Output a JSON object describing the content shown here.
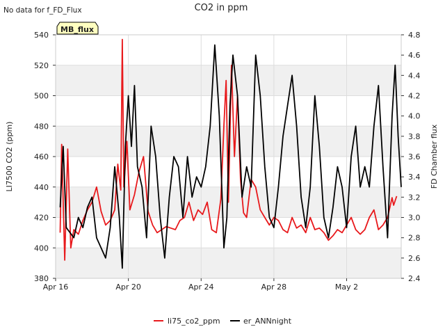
{
  "no_data_note": "No data for f_FD_Flux",
  "site_badge": "MB_flux",
  "colors": {
    "li75": "#e8191c",
    "ann": "#000000",
    "band": "#f0f0f0",
    "badge_bg": "#ffffc0",
    "badge_text": "#8b0000"
  },
  "chart_data": {
    "type": "line",
    "title": "CO2 in ppm",
    "ylabel": "LI7500 CO2 (ppm)",
    "y2label": "FD Chamber flux",
    "xlim": [
      "2024-04-16",
      "2024-05-05"
    ],
    "ylim": [
      380,
      540
    ],
    "y2lim": [
      2.4,
      4.8
    ],
    "x_ticks": [
      {
        "date": "2024-04-16",
        "label": "Apr 16"
      },
      {
        "date": "2024-04-20",
        "label": "Apr 20"
      },
      {
        "date": "2024-04-24",
        "label": "Apr 24"
      },
      {
        "date": "2024-04-28",
        "label": "Apr 28"
      },
      {
        "date": "2024-05-02",
        "label": "May 2"
      }
    ],
    "y_ticks": [
      380,
      400,
      420,
      440,
      460,
      480,
      500,
      520,
      540
    ],
    "y2_ticks": [
      "2.4",
      "2.6",
      "2.8",
      "3.0",
      "3.2",
      "3.4",
      "3.6",
      "3.8",
      "4.0",
      "4.2",
      "4.4",
      "4.6",
      "4.8"
    ],
    "grid": true,
    "legend_position": "bottom",
    "series": [
      {
        "name": "li75_co2_ppm",
        "axis": "left",
        "points": [
          [
            "2024-04-16 06:00",
            410
          ],
          [
            "2024-04-16 08:00",
            468
          ],
          [
            "2024-04-16 12:00",
            392
          ],
          [
            "2024-04-16 16:00",
            465
          ],
          [
            "2024-04-16 20:00",
            400
          ],
          [
            "2024-04-17 00:00",
            412
          ],
          [
            "2024-04-17 06:00",
            409
          ],
          [
            "2024-04-17 12:00",
            418
          ],
          [
            "2024-04-17 18:00",
            425
          ],
          [
            "2024-04-18 00:00",
            430
          ],
          [
            "2024-04-18 06:00",
            440
          ],
          [
            "2024-04-18 12:00",
            424
          ],
          [
            "2024-04-18 18:00",
            415
          ],
          [
            "2024-04-19 00:00",
            418
          ],
          [
            "2024-04-19 06:00",
            425
          ],
          [
            "2024-04-19 10:00",
            455
          ],
          [
            "2024-04-19 14:00",
            438
          ],
          [
            "2024-04-19 16:00",
            537
          ],
          [
            "2024-04-19 18:00",
            440
          ],
          [
            "2024-04-19 22:00",
            470
          ],
          [
            "2024-04-20 02:00",
            425
          ],
          [
            "2024-04-20 08:00",
            435
          ],
          [
            "2024-04-20 14:00",
            450
          ],
          [
            "2024-04-20 20:00",
            460
          ],
          [
            "2024-04-21 02:00",
            424
          ],
          [
            "2024-04-21 08:00",
            415
          ],
          [
            "2024-04-21 14:00",
            410
          ],
          [
            "2024-04-21 20:00",
            412
          ],
          [
            "2024-04-22 02:00",
            414
          ],
          [
            "2024-04-22 08:00",
            413
          ],
          [
            "2024-04-22 14:00",
            412
          ],
          [
            "2024-04-22 20:00",
            418
          ],
          [
            "2024-04-23 02:00",
            420
          ],
          [
            "2024-04-23 08:00",
            430
          ],
          [
            "2024-04-23 14:00",
            418
          ],
          [
            "2024-04-23 20:00",
            425
          ],
          [
            "2024-04-24 02:00",
            422
          ],
          [
            "2024-04-24 08:00",
            430
          ],
          [
            "2024-04-24 14:00",
            412
          ],
          [
            "2024-04-24 20:00",
            410
          ],
          [
            "2024-04-25 02:00",
            432
          ],
          [
            "2024-04-25 06:00",
            480
          ],
          [
            "2024-04-25 09:00",
            510
          ],
          [
            "2024-04-25 12:00",
            430
          ],
          [
            "2024-04-25 16:00",
            520
          ],
          [
            "2024-04-25 20:00",
            460
          ],
          [
            "2024-04-26 00:00",
            500
          ],
          [
            "2024-04-26 04:00",
            445
          ],
          [
            "2024-04-26 08:00",
            423
          ],
          [
            "2024-04-26 12:00",
            420
          ],
          [
            "2024-04-26 18:00",
            445
          ],
          [
            "2024-04-27 00:00",
            440
          ],
          [
            "2024-04-27 06:00",
            425
          ],
          [
            "2024-04-27 12:00",
            420
          ],
          [
            "2024-04-27 18:00",
            415
          ],
          [
            "2024-04-28 00:00",
            420
          ],
          [
            "2024-04-28 06:00",
            418
          ],
          [
            "2024-04-28 12:00",
            412
          ],
          [
            "2024-04-28 18:00",
            410
          ],
          [
            "2024-04-29 00:00",
            420
          ],
          [
            "2024-04-29 06:00",
            413
          ],
          [
            "2024-04-29 12:00",
            415
          ],
          [
            "2024-04-29 18:00",
            410
          ],
          [
            "2024-04-30 00:00",
            420
          ],
          [
            "2024-04-30 06:00",
            412
          ],
          [
            "2024-04-30 12:00",
            413
          ],
          [
            "2024-04-30 18:00",
            410
          ],
          [
            "2024-05-01 00:00",
            405
          ],
          [
            "2024-05-01 06:00",
            408
          ],
          [
            "2024-05-01 12:00",
            412
          ],
          [
            "2024-05-01 18:00",
            410
          ],
          [
            "2024-05-02 00:00",
            415
          ],
          [
            "2024-05-02 06:00",
            420
          ],
          [
            "2024-05-02 12:00",
            412
          ],
          [
            "2024-05-02 18:00",
            409
          ],
          [
            "2024-05-03 00:00",
            412
          ],
          [
            "2024-05-03 06:00",
            420
          ],
          [
            "2024-05-03 12:00",
            425
          ],
          [
            "2024-05-03 18:00",
            412
          ],
          [
            "2024-05-04 00:00",
            415
          ],
          [
            "2024-05-04 06:00",
            420
          ],
          [
            "2024-05-04 12:00",
            433
          ],
          [
            "2024-05-04 14:00",
            428
          ],
          [
            "2024-05-04 18:00",
            434
          ]
        ]
      },
      {
        "name": "er_ANNnight",
        "axis": "right",
        "points": [
          [
            "2024-04-16 06:00",
            3.1
          ],
          [
            "2024-04-16 10:00",
            3.7
          ],
          [
            "2024-04-16 14:00",
            2.9
          ],
          [
            "2024-04-17 00:00",
            2.8
          ],
          [
            "2024-04-17 06:00",
            3.0
          ],
          [
            "2024-04-17 12:00",
            2.9
          ],
          [
            "2024-04-17 18:00",
            3.1
          ],
          [
            "2024-04-18 00:00",
            3.2
          ],
          [
            "2024-04-18 06:00",
            2.8
          ],
          [
            "2024-04-18 12:00",
            2.7
          ],
          [
            "2024-04-18 18:00",
            2.6
          ],
          [
            "2024-04-19 00:00",
            2.9
          ],
          [
            "2024-04-19 06:00",
            3.5
          ],
          [
            "2024-04-19 12:00",
            3.0
          ],
          [
            "2024-04-19 16:00",
            2.5
          ],
          [
            "2024-04-19 20:00",
            3.7
          ],
          [
            "2024-04-20 00:00",
            4.2
          ],
          [
            "2024-04-20 04:00",
            3.7
          ],
          [
            "2024-04-20 08:00",
            4.3
          ],
          [
            "2024-04-20 12:00",
            3.5
          ],
          [
            "2024-04-20 18:00",
            3.3
          ],
          [
            "2024-04-21 00:00",
            2.8
          ],
          [
            "2024-04-21 06:00",
            3.9
          ],
          [
            "2024-04-21 12:00",
            3.6
          ],
          [
            "2024-04-21 18:00",
            3.0
          ],
          [
            "2024-04-22 00:00",
            2.6
          ],
          [
            "2024-04-22 06:00",
            3.2
          ],
          [
            "2024-04-22 12:00",
            3.6
          ],
          [
            "2024-04-22 18:00",
            3.5
          ],
          [
            "2024-04-23 00:00",
            3.0
          ],
          [
            "2024-04-23 06:00",
            3.6
          ],
          [
            "2024-04-23 12:00",
            3.2
          ],
          [
            "2024-04-23 18:00",
            3.4
          ],
          [
            "2024-04-24 00:00",
            3.3
          ],
          [
            "2024-04-24 06:00",
            3.5
          ],
          [
            "2024-04-24 12:00",
            3.9
          ],
          [
            "2024-04-24 18:00",
            4.7
          ],
          [
            "2024-04-25 00:00",
            4.0
          ],
          [
            "2024-04-25 06:00",
            2.7
          ],
          [
            "2024-04-25 10:00",
            3.0
          ],
          [
            "2024-04-25 14:00",
            4.1
          ],
          [
            "2024-04-25 18:00",
            4.6
          ],
          [
            "2024-04-26 00:00",
            4.2
          ],
          [
            "2024-04-26 06:00",
            3.2
          ],
          [
            "2024-04-26 12:00",
            3.5
          ],
          [
            "2024-04-26 18:00",
            3.3
          ],
          [
            "2024-04-27 00:00",
            4.6
          ],
          [
            "2024-04-27 06:00",
            4.2
          ],
          [
            "2024-04-27 12:00",
            3.5
          ],
          [
            "2024-04-27 18:00",
            3.0
          ],
          [
            "2024-04-28 00:00",
            2.9
          ],
          [
            "2024-04-28 06:00",
            3.3
          ],
          [
            "2024-04-28 12:00",
            3.8
          ],
          [
            "2024-04-28 18:00",
            4.1
          ],
          [
            "2024-04-29 00:00",
            4.4
          ],
          [
            "2024-04-29 06:00",
            3.9
          ],
          [
            "2024-04-29 12:00",
            3.2
          ],
          [
            "2024-04-29 18:00",
            2.9
          ],
          [
            "2024-04-30 00:00",
            3.3
          ],
          [
            "2024-04-30 06:00",
            4.2
          ],
          [
            "2024-04-30 12:00",
            3.7
          ],
          [
            "2024-04-30 18:00",
            3.0
          ],
          [
            "2024-05-01 00:00",
            2.8
          ],
          [
            "2024-05-01 06:00",
            3.1
          ],
          [
            "2024-05-01 12:00",
            3.5
          ],
          [
            "2024-05-01 18:00",
            3.3
          ],
          [
            "2024-05-02 00:00",
            2.9
          ],
          [
            "2024-05-02 06:00",
            3.6
          ],
          [
            "2024-05-02 12:00",
            3.9
          ],
          [
            "2024-05-02 18:00",
            3.3
          ],
          [
            "2024-05-03 00:00",
            3.5
          ],
          [
            "2024-05-03 06:00",
            3.3
          ],
          [
            "2024-05-03 12:00",
            3.9
          ],
          [
            "2024-05-03 18:00",
            4.3
          ],
          [
            "2024-05-04 00:00",
            3.5
          ],
          [
            "2024-05-04 06:00",
            2.8
          ],
          [
            "2024-05-04 12:00",
            4.0
          ],
          [
            "2024-05-04 16:00",
            4.5
          ],
          [
            "2024-05-04 20:00",
            3.8
          ],
          [
            "2024-05-05 00:00",
            3.3
          ]
        ]
      }
    ]
  }
}
